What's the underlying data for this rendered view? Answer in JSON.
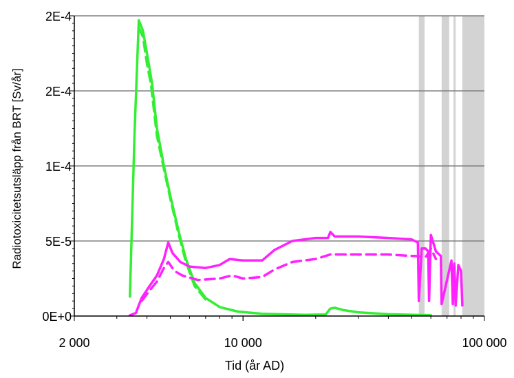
{
  "chart_data": {
    "type": "line",
    "title": "",
    "xlabel": "Tid (år AD)",
    "ylabel": "Radiotoxicitetsutsläpp från BRT [Sv/år]",
    "x_scale": "log",
    "xlim": [
      2000,
      100000
    ],
    "ylim": [
      0,
      0.0002
    ],
    "x_ticks": [
      {
        "value": 2000,
        "label": "2 000"
      },
      {
        "value": 10000,
        "label": "10 000"
      },
      {
        "value": 100000,
        "label": "100 000"
      }
    ],
    "y_ticks": [
      {
        "value": 0,
        "label": "0E+0"
      },
      {
        "value": 5e-05,
        "label": "5E-5"
      },
      {
        "value": 0.0001,
        "label": "1E-4"
      },
      {
        "value": 0.00015,
        "label": "2E-4"
      },
      {
        "value": 0.0002,
        "label": "2E-4"
      }
    ],
    "grid": "horizontal",
    "legend": "none",
    "shaded_periods": [
      [
        53500,
        56500
      ],
      [
        66500,
        71500
      ],
      [
        74500,
        76000
      ],
      [
        81000,
        100000
      ]
    ],
    "colors": {
      "green": "#33ee33",
      "magenta": "#ff22ff",
      "shade": "#d3d3d3",
      "grid": "#808080"
    },
    "series": [
      {
        "color": "green",
        "dash": false,
        "points": [
          [
            3400,
            1.3e-05
          ],
          [
            3550,
            0.00012
          ],
          [
            3700,
            0.000197
          ],
          [
            3850,
            0.00019
          ],
          [
            4000,
            0.000175
          ],
          [
            4200,
            0.000155
          ],
          [
            4400,
            0.000125
          ],
          [
            4700,
            0.0001
          ],
          [
            5000,
            8e-05
          ],
          [
            5400,
            5.7e-05
          ],
          [
            5800,
            3.8e-05
          ],
          [
            6300,
            2.2e-05
          ],
          [
            7000,
            1.2e-05
          ],
          [
            8000,
            6e-06
          ],
          [
            9500,
            3e-06
          ],
          [
            12000,
            1.5e-06
          ],
          [
            18000,
            8e-07
          ],
          [
            22000,
            1e-06
          ],
          [
            23000,
            5e-06
          ],
          [
            24000,
            5.5e-06
          ],
          [
            26000,
            4e-06
          ],
          [
            30000,
            2.5e-06
          ],
          [
            40000,
            1.2e-06
          ],
          [
            60000,
            5e-07
          ]
        ]
      },
      {
        "color": "green",
        "dash": true,
        "points": [
          [
            3700,
            0.000192
          ],
          [
            3850,
            0.000186
          ],
          [
            4000,
            0.000168
          ],
          [
            4150,
            0.000155
          ],
          [
            4400,
            0.00012
          ],
          [
            4700,
            9.8e-05
          ],
          [
            5000,
            7.8e-05
          ],
          [
            5400,
            5.5e-05
          ],
          [
            5800,
            3.6e-05
          ],
          [
            6300,
            2e-05
          ],
          [
            7000,
            1.1e-05
          ]
        ]
      },
      {
        "color": "magenta",
        "dash": false,
        "points": [
          [
            3400,
            5e-07
          ],
          [
            3600,
            2e-06
          ],
          [
            3800,
            1.2e-05
          ],
          [
            4100,
            2e-05
          ],
          [
            4400,
            2.7e-05
          ],
          [
            4700,
            3.8e-05
          ],
          [
            4900,
            4.9e-05
          ],
          [
            5100,
            4.2e-05
          ],
          [
            5500,
            3.6e-05
          ],
          [
            6000,
            3.3e-05
          ],
          [
            7000,
            3.2e-05
          ],
          [
            8000,
            3.4e-05
          ],
          [
            8800,
            3.8e-05
          ],
          [
            10000,
            3.7e-05
          ],
          [
            12000,
            3.7e-05
          ],
          [
            13500,
            4.4e-05
          ],
          [
            16000,
            5e-05
          ],
          [
            20000,
            5.2e-05
          ],
          [
            22500,
            5.2e-05
          ],
          [
            23000,
            5.6e-05
          ],
          [
            24000,
            5.3e-05
          ],
          [
            30000,
            5.3e-05
          ],
          [
            40000,
            5.2e-05
          ],
          [
            50000,
            5.1e-05
          ],
          [
            53000,
            4.9e-05
          ],
          [
            53500,
            1e-05
          ],
          [
            55000,
            4.5e-05
          ],
          [
            57000,
            4.5e-05
          ],
          [
            58500,
            4.3e-05
          ],
          [
            59000,
            1e-05
          ],
          [
            60000,
            5.4e-05
          ],
          [
            63000,
            4.3e-05
          ],
          [
            66000,
            4e-05
          ],
          [
            66500,
            8e-06
          ],
          [
            73000,
            3.7e-05
          ],
          [
            74000,
            8e-06
          ],
          [
            75000,
            3.5e-05
          ],
          [
            76000,
            7e-06
          ],
          [
            78000,
            3.4e-05
          ],
          [
            80000,
            3e-05
          ],
          [
            81000,
            7e-06
          ]
        ]
      },
      {
        "color": "magenta",
        "dash": true,
        "points": [
          [
            3800,
            1e-05
          ],
          [
            4100,
            1.7e-05
          ],
          [
            4400,
            2.3e-05
          ],
          [
            4700,
            3.2e-05
          ],
          [
            4900,
            3.6e-05
          ],
          [
            5200,
            3e-05
          ],
          [
            5600,
            2.7e-05
          ],
          [
            6500,
            2.4e-05
          ],
          [
            8000,
            2.5e-05
          ],
          [
            9000,
            2.7e-05
          ],
          [
            10000,
            2.5e-05
          ],
          [
            12000,
            2.6e-05
          ],
          [
            13500,
            3.1e-05
          ],
          [
            16000,
            3.6e-05
          ],
          [
            20000,
            3.8e-05
          ],
          [
            23000,
            4.1e-05
          ],
          [
            30000,
            4.1e-05
          ],
          [
            40000,
            4.1e-05
          ],
          [
            50000,
            4e-05
          ],
          [
            52000,
            4e-05
          ],
          [
            57000,
            3.9e-05
          ],
          [
            60000,
            4.5e-05
          ],
          [
            63000,
            3.8e-05
          ]
        ]
      }
    ]
  }
}
